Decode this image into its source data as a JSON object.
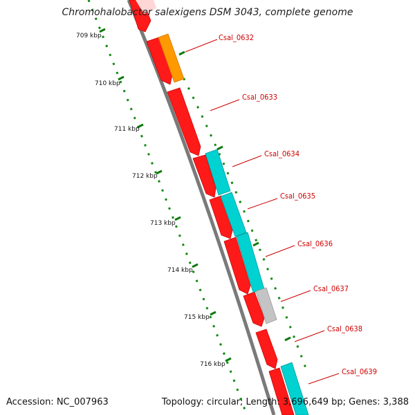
{
  "title": "Chromohalobacter salexigens DSM 3043, complete genome",
  "footer": {
    "accession": "Accession: NC_007963",
    "summary": "Topology: circular; Length: 3,696,649 bp; Genes: 3,388"
  },
  "kbp_labels": [
    "709 kbp",
    "710 kbp",
    "711 kbp",
    "712 kbp",
    "713 kbp",
    "714 kbp",
    "715 kbp",
    "716 kbp"
  ],
  "gene_labels": [
    "Csal_0632",
    "Csal_0633",
    "Csal_0634",
    "Csal_0635",
    "Csal_0636",
    "Csal_0637",
    "Csal_0638",
    "Csal_0639"
  ],
  "colors": {
    "forward_cds": "#ff0000",
    "rna": "#ff9900",
    "cog": "#00cccc",
    "other": "#c0c0c0",
    "backbone": "#808080",
    "ticks": "#006600",
    "label_lines": "#cc0000"
  }
}
